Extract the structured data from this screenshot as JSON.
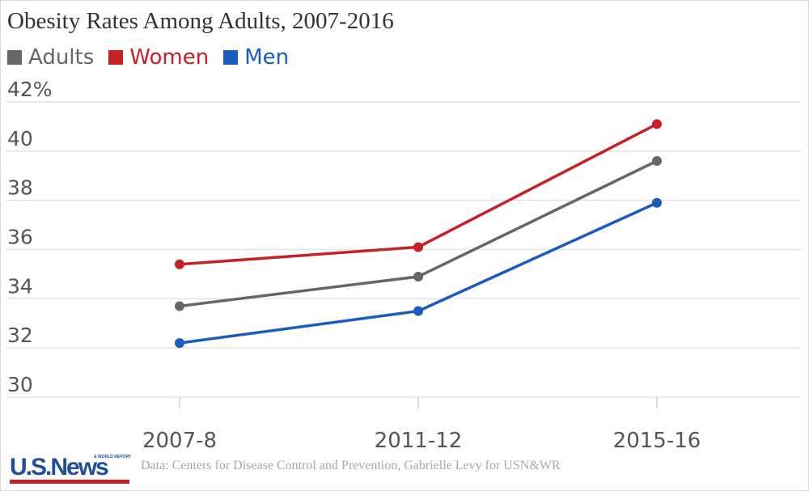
{
  "chart_data": {
    "type": "line",
    "title": "Obesity Rates Among Adults, 2007-2016",
    "categories": [
      "2007-8",
      "2011-12",
      "2015-16"
    ],
    "series": [
      {
        "name": "Adults",
        "color": "#666666",
        "values": [
          33.7,
          34.9,
          39.6
        ]
      },
      {
        "name": "Women",
        "color": "#c62127",
        "values": [
          35.4,
          36.1,
          41.1
        ]
      },
      {
        "name": "Men",
        "color": "#1a5bbf",
        "values": [
          32.2,
          33.5,
          37.9
        ]
      }
    ],
    "y_ticks": [
      "42%",
      "40",
      "38",
      "36",
      "34",
      "32",
      "30"
    ],
    "y_tick_values": [
      42,
      40,
      38,
      36,
      34,
      32,
      30
    ],
    "ylim": [
      30,
      42
    ],
    "grid": true,
    "legend": "top-left"
  },
  "footer": {
    "logo_text": "U.S.News",
    "logo_sub": "& WORLD REPORT",
    "source": "Data: Centers for Disease Control and Prevention, Gabrielle Levy for USN&WR"
  }
}
